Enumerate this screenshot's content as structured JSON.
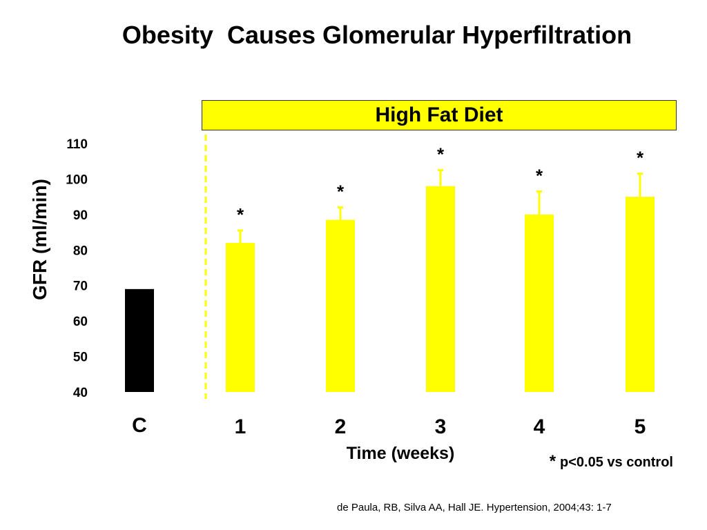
{
  "slide": {
    "title": "Obesity  Causes Glomerular Hyperfiltration",
    "citation": "de Paula, RB, Silva AA, Hall JE. Hypertension, 2004;43: 1-7"
  },
  "chart_data": {
    "type": "bar",
    "banner": "High Fat Diet",
    "ylabel": "GFR (ml/min)",
    "xlabel": "Time (weeks)",
    "ylim": [
      40,
      110
    ],
    "yticks": [
      40,
      50,
      60,
      70,
      80,
      90,
      100,
      110
    ],
    "categories": [
      "C",
      "1",
      "2",
      "3",
      "4",
      "5"
    ],
    "values": [
      69,
      82,
      88.5,
      98,
      90,
      95
    ],
    "error": [
      0,
      3.5,
      3.5,
      4.5,
      6.5,
      6.5
    ],
    "significant": [
      false,
      true,
      true,
      true,
      true,
      true
    ],
    "significance_marker": "*",
    "significance_note": "p<0.05 vs control",
    "colors": {
      "control": "#000000",
      "diet": "#ffff00",
      "divider": "#ffff00"
    },
    "grid": false,
    "legend": "none"
  }
}
